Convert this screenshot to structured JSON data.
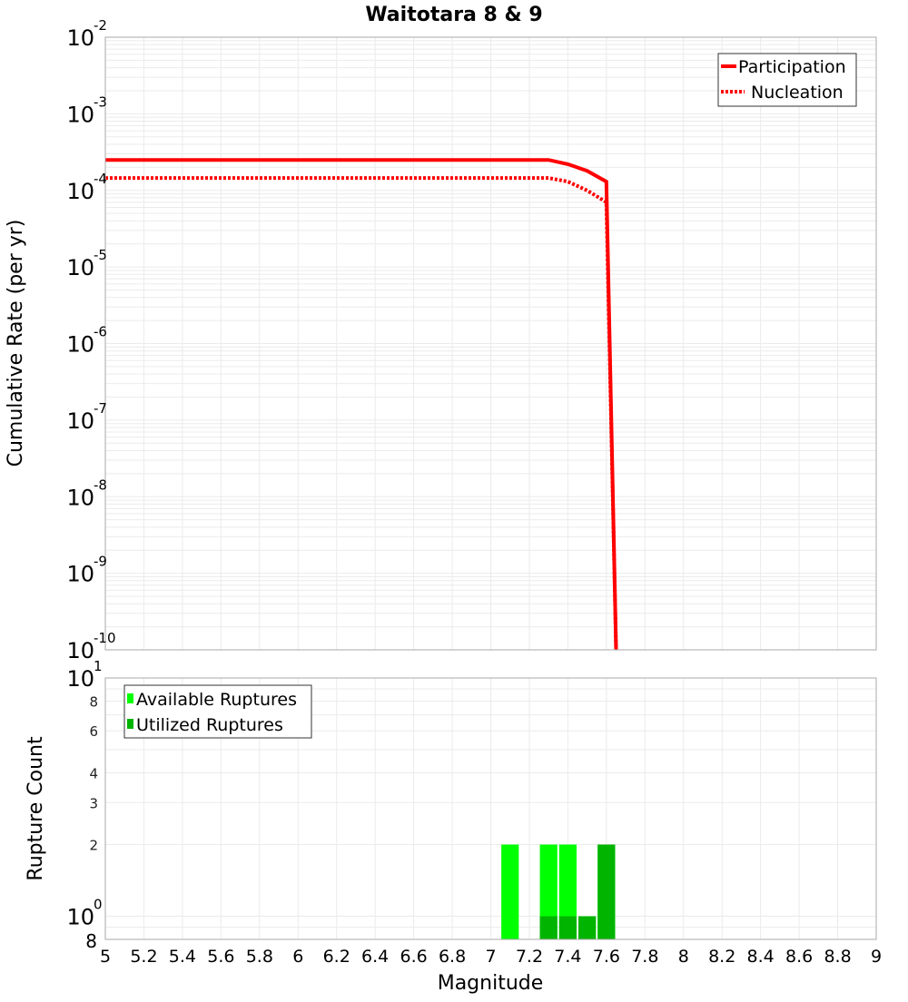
{
  "chart_data": [
    {
      "type": "line",
      "title": "Waitotara 8 & 9",
      "xlabel": "Magnitude",
      "ylabel": "Cumulative Rate (per yr)",
      "yscale": "log",
      "xlim": [
        5,
        9
      ],
      "ylim": [
        1e-10,
        0.01
      ],
      "grid": true,
      "legend_position": "upper right",
      "y_ticks": [
        {
          "base": "10",
          "exp": "-2",
          "value": 0.01
        },
        {
          "base": "10",
          "exp": "-3",
          "value": 0.001
        },
        {
          "base": "10",
          "exp": "-4",
          "value": 0.0001
        },
        {
          "base": "10",
          "exp": "-5",
          "value": 1e-05
        },
        {
          "base": "10",
          "exp": "-6",
          "value": 1e-06
        },
        {
          "base": "10",
          "exp": "-7",
          "value": 1e-07
        },
        {
          "base": "10",
          "exp": "-8",
          "value": 1e-08
        },
        {
          "base": "10",
          "exp": "-9",
          "value": 1e-09
        },
        {
          "base": "10",
          "exp": "-10",
          "value": 1e-10
        }
      ],
      "series": [
        {
          "name": "Participation",
          "style": "solid",
          "color": "#ff0000",
          "x": [
            5.0,
            7.3,
            7.4,
            7.5,
            7.6,
            7.65
          ],
          "values": [
            0.00025,
            0.00025,
            0.00022,
            0.00018,
            0.00013,
            1e-10
          ]
        },
        {
          "name": "Nucleation",
          "style": "dotted",
          "color": "#ff0000",
          "x": [
            5.0,
            7.3,
            7.4,
            7.5,
            7.6,
            7.65
          ],
          "values": [
            0.000145,
            0.000145,
            0.00013,
            0.0001,
            7e-05,
            1e-10
          ]
        }
      ]
    },
    {
      "type": "bar",
      "title": "",
      "xlabel": "Magnitude",
      "ylabel": "Rupture Count",
      "yscale": "log",
      "xlim": [
        5,
        9
      ],
      "ylim": [
        0.8,
        10
      ],
      "grid": true,
      "legend_position": "upper left",
      "y_ticks": [
        {
          "label": "8",
          "value": 0.8,
          "major": false
        },
        {
          "base": "10",
          "exp": "0",
          "value": 1,
          "major": true
        },
        {
          "label": "2",
          "value": 2,
          "major": false
        },
        {
          "label": "3",
          "value": 3,
          "major": false
        },
        {
          "label": "4",
          "value": 4,
          "major": false
        },
        {
          "label": "6",
          "value": 6,
          "major": false
        },
        {
          "label": "8",
          "value": 8,
          "major": false
        },
        {
          "base": "10",
          "exp": "1",
          "value": 10,
          "major": true
        }
      ],
      "bar_width": 0.1,
      "series": [
        {
          "name": "Available Ruptures",
          "color": "#00ff00",
          "x": [
            7.1,
            7.3,
            7.4,
            7.5,
            7.6
          ],
          "values": [
            2,
            2,
            2,
            1,
            2
          ]
        },
        {
          "name": "Utilized Ruptures",
          "color": "#00b400",
          "x": [
            7.3,
            7.4,
            7.5,
            7.6
          ],
          "values": [
            1,
            1,
            1,
            2
          ]
        }
      ]
    }
  ],
  "x_ticks": [
    "5",
    "5.2",
    "5.4",
    "5.6",
    "5.8",
    "6",
    "6.2",
    "6.4",
    "6.6",
    "6.8",
    "7",
    "7.2",
    "7.4",
    "7.6",
    "7.8",
    "8",
    "8.2",
    "8.4",
    "8.6",
    "8.8",
    "9"
  ],
  "labels": {
    "title": "Waitotara 8 & 9",
    "top_ylabel": "Cumulative Rate (per yr)",
    "bottom_ylabel": "Rupture Count",
    "xlabel": "Magnitude"
  },
  "legends": {
    "top": [
      "Participation",
      "Nucleation"
    ],
    "bottom": [
      "Available Ruptures",
      "Utilized Ruptures"
    ]
  }
}
